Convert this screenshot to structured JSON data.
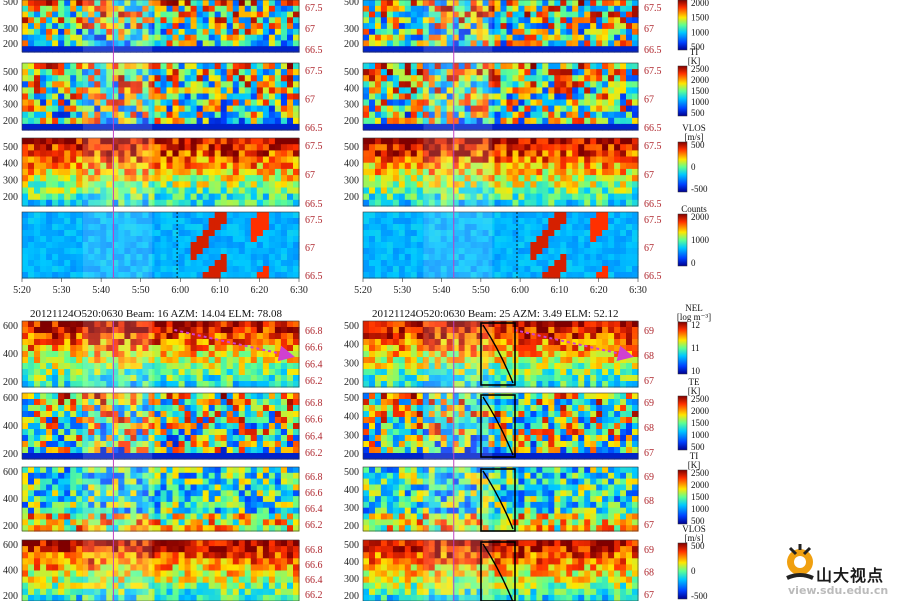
{
  "top": {
    "time_ticks": [
      "5:20",
      "5:30",
      "5:40",
      "5:50",
      "6:00",
      "6:10",
      "6:20",
      "6:30"
    ],
    "lat_ticks": [
      "67.5",
      "67",
      "66.5"
    ],
    "alt_ticks": [
      "500",
      "400",
      "300",
      "200"
    ],
    "partial_top_alt": [
      "300",
      "200"
    ],
    "partial_top_alt_mark": "500"
  },
  "bottom": {
    "left_header": "20121124O520:0630   Beam: 16   AZM: 14.04   ELM: 78.08",
    "right_header": "20121124O520:0630   Beam: 25   AZM: 3.49   ELM: 52.12",
    "left_alt_ticks": [
      "600",
      "400",
      "200"
    ],
    "right_alt_ticks": [
      "500",
      "400",
      "300",
      "200"
    ],
    "left_lat_ticks": [
      "66.8",
      "66.6",
      "66.4",
      "66.2"
    ],
    "right_lat_ticks": [
      "69",
      "68",
      "67"
    ]
  },
  "colorbars": {
    "top": [
      {
        "label": "",
        "ticks": [
          "2000",
          "1500",
          "1000",
          "500"
        ]
      },
      {
        "label": "TI\n[K]",
        "ticks": [
          "2500",
          "2000",
          "1500",
          "1000",
          "500"
        ]
      },
      {
        "label": "VLOS\n[m/s]",
        "ticks": [
          "500",
          "0",
          "-500"
        ]
      },
      {
        "label": "Counts",
        "ticks": [
          "2000",
          "1000",
          "0"
        ]
      }
    ],
    "bottom": [
      {
        "label": "NEL\n[log m⁻³]",
        "ticks": [
          "12",
          "11",
          "10"
        ]
      },
      {
        "label": "TE\n[K]",
        "ticks": [
          "2500",
          "2000",
          "1500",
          "1000",
          "500"
        ]
      },
      {
        "label": "TI\n[K]",
        "ticks": [
          "2500",
          "2000",
          "1500",
          "1000",
          "500"
        ]
      },
      {
        "label": "VLOS\n[m/s]",
        "ticks": [
          "500",
          "0",
          "-500"
        ]
      }
    ]
  },
  "brand": {
    "name": "山大视点",
    "url": "view.sdu.edu.cn"
  },
  "colors": {
    "lat_label": "#b0282f",
    "cursor_line": "#c040c0",
    "arrow": "#d040d0"
  }
}
